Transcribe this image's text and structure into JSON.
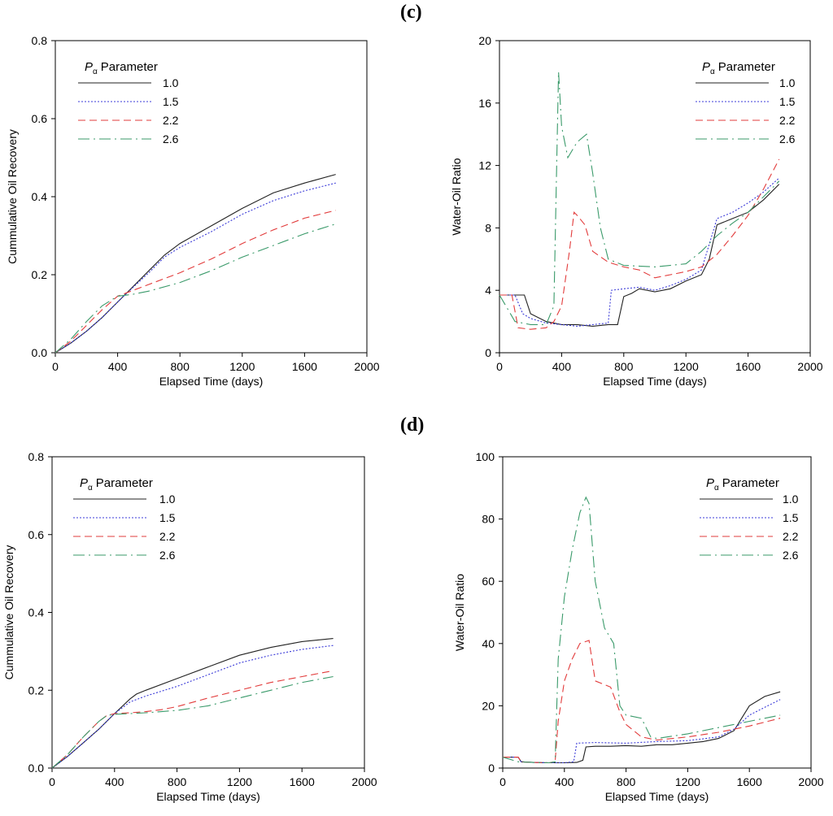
{
  "panels": {
    "c": "(c)",
    "d": "(d)"
  },
  "legend_title": {
    "symbol": "P",
    "subscript": "α",
    "text": "Parameter"
  },
  "colors": {
    "1.0": "#222222",
    "1.5": "#3b3bd8",
    "2.2": "#e23b3b",
    "2.6": "#3a9a6a"
  },
  "chart_data": [
    {
      "id": "c-left",
      "type": "line",
      "title": "",
      "xlabel": "Elapsed Time (days)",
      "ylabel": "Cummulative Oil Recovery",
      "xlim": [
        0,
        2000
      ],
      "ylim": [
        0,
        0.8
      ],
      "xticks": [
        0,
        400,
        800,
        1200,
        1600,
        2000
      ],
      "xtick_labels": [
        "0",
        "400",
        "800",
        "1200",
        "1600",
        "2000"
      ],
      "yticks": [
        0,
        0.2,
        0.4,
        0.6,
        0.8
      ],
      "ytick_labels": [
        "0.0",
        "0.2",
        "0.4",
        "0.6",
        "0.8"
      ],
      "legend_position": "top-left",
      "series": [
        {
          "name": "1.0",
          "style": "solid",
          "x": [
            0,
            100,
            200,
            300,
            400,
            500,
            600,
            700,
            800,
            1000,
            1200,
            1400,
            1600,
            1800
          ],
          "y": [
            0,
            0.025,
            0.055,
            0.09,
            0.13,
            0.17,
            0.21,
            0.25,
            0.28,
            0.325,
            0.37,
            0.41,
            0.435,
            0.457
          ]
        },
        {
          "name": "1.5",
          "style": "dotted",
          "x": [
            0,
            100,
            200,
            300,
            400,
            500,
            600,
            700,
            800,
            1000,
            1200,
            1400,
            1600,
            1800
          ],
          "y": [
            0,
            0.025,
            0.055,
            0.09,
            0.13,
            0.168,
            0.205,
            0.245,
            0.27,
            0.31,
            0.355,
            0.39,
            0.415,
            0.435
          ]
        },
        {
          "name": "2.2",
          "style": "dashed",
          "x": [
            0,
            100,
            200,
            300,
            400,
            500,
            600,
            800,
            1000,
            1200,
            1400,
            1600,
            1800
          ],
          "y": [
            0,
            0.03,
            0.07,
            0.11,
            0.145,
            0.16,
            0.175,
            0.205,
            0.24,
            0.28,
            0.315,
            0.345,
            0.365
          ]
        },
        {
          "name": "2.6",
          "style": "dashdot",
          "x": [
            0,
            100,
            200,
            300,
            400,
            500,
            600,
            800,
            1000,
            1200,
            1400,
            1600,
            1800
          ],
          "y": [
            0,
            0.035,
            0.08,
            0.12,
            0.145,
            0.15,
            0.158,
            0.18,
            0.21,
            0.245,
            0.275,
            0.305,
            0.33
          ]
        }
      ]
    },
    {
      "id": "c-right",
      "type": "line",
      "title": "",
      "xlabel": "Elapsed Time (days)",
      "ylabel": "Water-Oil Ratio",
      "xlim": [
        0,
        2000
      ],
      "ylim": [
        0,
        20
      ],
      "xticks": [
        0,
        400,
        800,
        1200,
        1600,
        2000
      ],
      "xtick_labels": [
        "0",
        "400",
        "800",
        "1200",
        "1600",
        "2000"
      ],
      "yticks": [
        0,
        4,
        8,
        12,
        16,
        20
      ],
      "ytick_labels": [
        "0",
        "4",
        "8",
        "12",
        "16",
        "20"
      ],
      "legend_position": "top-right",
      "series": [
        {
          "name": "1.0",
          "style": "solid",
          "x": [
            0,
            160,
            200,
            300,
            400,
            500,
            600,
            700,
            760,
            800,
            850,
            900,
            1000,
            1100,
            1200,
            1300,
            1350,
            1400,
            1500,
            1600,
            1700,
            1800
          ],
          "y": [
            3.7,
            3.7,
            2.5,
            2.0,
            1.8,
            1.8,
            1.7,
            1.8,
            1.8,
            3.6,
            3.8,
            4.1,
            3.9,
            4.1,
            4.6,
            5.0,
            6.0,
            8.2,
            8.6,
            9.0,
            9.8,
            10.8
          ]
        },
        {
          "name": "1.5",
          "style": "dotted",
          "x": [
            0,
            100,
            150,
            200,
            300,
            400,
            500,
            600,
            700,
            720,
            800,
            900,
            1000,
            1100,
            1200,
            1300,
            1400,
            1500,
            1600,
            1700,
            1800
          ],
          "y": [
            3.7,
            3.7,
            2.5,
            2.2,
            1.9,
            1.8,
            1.7,
            1.8,
            1.9,
            4.0,
            4.1,
            4.2,
            4.0,
            4.3,
            4.7,
            5.3,
            8.6,
            9.0,
            9.6,
            10.3,
            11.2
          ]
        },
        {
          "name": "2.2",
          "style": "dashed",
          "x": [
            0,
            80,
            120,
            200,
            300,
            350,
            400,
            450,
            480,
            500,
            550,
            600,
            700,
            800,
            900,
            1000,
            1100,
            1200,
            1300,
            1400,
            1500,
            1600,
            1700,
            1800
          ],
          "y": [
            3.7,
            3.7,
            1.6,
            1.5,
            1.6,
            2.0,
            3.0,
            6.5,
            9.0,
            8.8,
            8.2,
            6.5,
            5.8,
            5.5,
            5.3,
            4.8,
            5.0,
            5.2,
            5.5,
            6.3,
            7.5,
            8.8,
            10.5,
            12.4
          ]
        },
        {
          "name": "2.6",
          "style": "dashdot",
          "x": [
            0,
            100,
            200,
            300,
            350,
            380,
            400,
            440,
            500,
            560,
            600,
            650,
            700,
            800,
            1000,
            1200,
            1300,
            1400,
            1500,
            1600,
            1700,
            1800
          ],
          "y": [
            3.7,
            2.0,
            1.8,
            1.8,
            3.0,
            18.0,
            14.5,
            12.5,
            13.5,
            14.0,
            11.5,
            8.0,
            6.0,
            5.6,
            5.5,
            5.7,
            6.5,
            7.5,
            8.3,
            9.0,
            10.0,
            11.0
          ]
        }
      ]
    },
    {
      "id": "d-left",
      "type": "line",
      "title": "",
      "xlabel": "Elapsed Time (days)",
      "ylabel": "Cummulative Oil Recovery",
      "xlim": [
        0,
        2000
      ],
      "ylim": [
        0,
        0.8
      ],
      "xticks": [
        0,
        400,
        800,
        1200,
        1600,
        2000
      ],
      "xtick_labels": [
        "0",
        "400",
        "800",
        "1200",
        "1600",
        "2000"
      ],
      "yticks": [
        0,
        0.2,
        0.4,
        0.6,
        0.8
      ],
      "ytick_labels": [
        "0.0",
        "0.2",
        "0.4",
        "0.6",
        "0.8"
      ],
      "legend_position": "top-left",
      "series": [
        {
          "name": "1.0",
          "style": "solid",
          "x": [
            0,
            100,
            200,
            300,
            400,
            500,
            540,
            600,
            800,
            1000,
            1200,
            1400,
            1600,
            1800
          ],
          "y": [
            0,
            0.03,
            0.065,
            0.1,
            0.14,
            0.178,
            0.19,
            0.2,
            0.23,
            0.26,
            0.29,
            0.31,
            0.325,
            0.333
          ]
        },
        {
          "name": "1.5",
          "style": "dotted",
          "x": [
            0,
            100,
            200,
            300,
            400,
            500,
            600,
            800,
            1000,
            1200,
            1400,
            1600,
            1800
          ],
          "y": [
            0,
            0.03,
            0.065,
            0.1,
            0.14,
            0.17,
            0.185,
            0.21,
            0.24,
            0.27,
            0.29,
            0.305,
            0.315
          ]
        },
        {
          "name": "2.2",
          "style": "dashed",
          "x": [
            0,
            100,
            200,
            300,
            350,
            400,
            500,
            600,
            700,
            800,
            1000,
            1200,
            1400,
            1600,
            1800
          ],
          "y": [
            0,
            0.035,
            0.08,
            0.12,
            0.135,
            0.14,
            0.142,
            0.145,
            0.15,
            0.158,
            0.18,
            0.2,
            0.22,
            0.235,
            0.25
          ]
        },
        {
          "name": "2.6",
          "style": "dashdot",
          "x": [
            0,
            100,
            200,
            300,
            350,
            400,
            500,
            600,
            800,
            1000,
            1200,
            1400,
            1600,
            1800
          ],
          "y": [
            0,
            0.035,
            0.08,
            0.12,
            0.135,
            0.138,
            0.14,
            0.142,
            0.148,
            0.16,
            0.18,
            0.2,
            0.22,
            0.235
          ]
        }
      ]
    },
    {
      "id": "d-right",
      "type": "line",
      "title": "",
      "xlabel": "Elapsed Time (days)",
      "ylabel": "Water-Oil Ratio",
      "xlim": [
        0,
        2000
      ],
      "ylim": [
        0,
        100
      ],
      "xticks": [
        0,
        400,
        800,
        1200,
        1600,
        2000
      ],
      "xtick_labels": [
        "0",
        "400",
        "800",
        "1200",
        "1600",
        "2000"
      ],
      "yticks": [
        0,
        20,
        40,
        60,
        80,
        100
      ],
      "ytick_labels": [
        "0",
        "20",
        "40",
        "60",
        "80",
        "100"
      ],
      "legend_position": "top-right",
      "series": [
        {
          "name": "1.0",
          "style": "solid",
          "x": [
            0,
            100,
            120,
            200,
            300,
            400,
            480,
            520,
            540,
            600,
            700,
            800,
            900,
            1000,
            1100,
            1200,
            1300,
            1400,
            1500,
            1550,
            1600,
            1700,
            1800
          ],
          "y": [
            3.5,
            3.5,
            2.0,
            1.8,
            1.7,
            1.7,
            1.8,
            2.5,
            6.8,
            7.0,
            7.0,
            7.2,
            7.0,
            7.5,
            7.5,
            8.0,
            8.5,
            9.5,
            12.0,
            16.0,
            20.0,
            23.0,
            24.5
          ]
        },
        {
          "name": "1.5",
          "style": "dotted",
          "x": [
            0,
            100,
            120,
            200,
            300,
            400,
            460,
            480,
            600,
            800,
            1000,
            1200,
            1400,
            1500,
            1600,
            1700,
            1800
          ],
          "y": [
            3.5,
            3.5,
            2.0,
            1.8,
            1.7,
            1.7,
            2.0,
            8.0,
            8.2,
            8.0,
            8.5,
            8.8,
            10.0,
            12.5,
            17.0,
            19.5,
            22.0
          ]
        },
        {
          "name": "2.2",
          "style": "dashed",
          "x": [
            0,
            100,
            120,
            200,
            300,
            340,
            360,
            400,
            450,
            500,
            560,
            600,
            700,
            760,
            800,
            900,
            1000,
            1200,
            1400,
            1600,
            1800
          ],
          "y": [
            3.5,
            3.5,
            2.0,
            1.8,
            1.7,
            2.0,
            15.0,
            28.0,
            35.0,
            40.0,
            41.0,
            28.0,
            26.0,
            18.0,
            14.0,
            10.0,
            9.0,
            10.0,
            11.5,
            13.5,
            16.0
          ]
        },
        {
          "name": "2.6",
          "style": "dashdot",
          "x": [
            0,
            100,
            200,
            300,
            340,
            360,
            400,
            450,
            500,
            540,
            560,
            600,
            660,
            720,
            760,
            800,
            900,
            960,
            1000,
            1200,
            1400,
            1600,
            1800
          ],
          "y": [
            3.5,
            2.0,
            1.8,
            1.7,
            2.0,
            35.0,
            55.0,
            70.0,
            82.0,
            87.0,
            85.0,
            60.0,
            45.0,
            40.0,
            20.0,
            17.0,
            16.0,
            10.0,
            9.5,
            11.0,
            13.0,
            15.0,
            17.0
          ]
        }
      ]
    }
  ]
}
